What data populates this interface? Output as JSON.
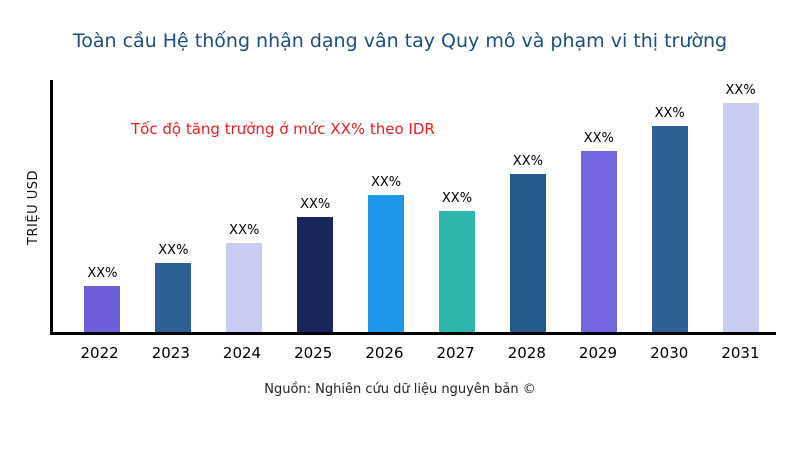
{
  "title": "Toàn cầu Hệ thống nhận dạng vân tay Quy mô và phạm vi thị trường",
  "annotation": "Tốc độ tăng trưởng ở mức XX% theo IDR",
  "source": "Nguồn: Nghiên cứu dữ liệu nguyên bản ©",
  "ylabel": "TRIỆU USD",
  "colors": {
    "title": "#1C4E80",
    "annotation": "#EC1C24",
    "axis": "#000000",
    "background": "#ffffff"
  },
  "chart_data": {
    "type": "bar",
    "title": "Toàn cầu Hệ thống nhận dạng vân tay Quy mô và phạm vi thị trường",
    "xlabel": "",
    "ylabel": "TRIỆU USD",
    "categories": [
      "2022",
      "2023",
      "2024",
      "2025",
      "2026",
      "2027",
      "2028",
      "2029",
      "2030",
      "2031"
    ],
    "values": [
      20,
      30,
      39,
      50,
      60,
      53,
      69,
      79,
      90,
      100
    ],
    "values_note": "relative bar heights estimated from pixels; no numeric axis values shown in chart",
    "data_labels": [
      "XX%",
      "XX%",
      "XX%",
      "XX%",
      "XX%",
      "XX%",
      "XX%",
      "XX%",
      "XX%",
      "XX%"
    ],
    "bar_colors": [
      "#6C5FD9",
      "#2E6191",
      "#C9CDF1",
      "#1A2559",
      "#1E96EA",
      "#2EB5AC",
      "#255C8E",
      "#7466E0",
      "#2E6191",
      "#C9CDF1"
    ],
    "ylim": [
      0,
      110
    ],
    "grid": false,
    "legend": "none",
    "annotation": "Tốc độ tăng trưởng ở mức XX% theo IDR"
  }
}
